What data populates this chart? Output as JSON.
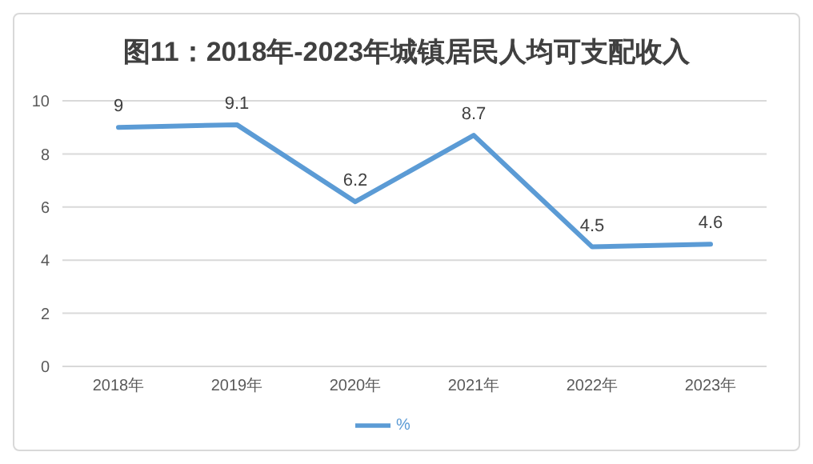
{
  "chart_data": {
    "type": "line",
    "title": "图11：2018年-2023年城镇居民人均可支配收入",
    "categories": [
      "2018年",
      "2019年",
      "2020年",
      "2021年",
      "2022年",
      "2023年"
    ],
    "series": [
      {
        "name": "%",
        "color": "#5b9bd5",
        "values": [
          9,
          9.1,
          6.2,
          8.7,
          4.5,
          4.6
        ]
      }
    ],
    "ylim": [
      0,
      10
    ],
    "yticks": [
      0,
      2,
      4,
      6,
      8,
      10
    ],
    "grid": "y",
    "legend": "bottom",
    "data_labels": true,
    "marker": "none",
    "line_style": "solid"
  }
}
